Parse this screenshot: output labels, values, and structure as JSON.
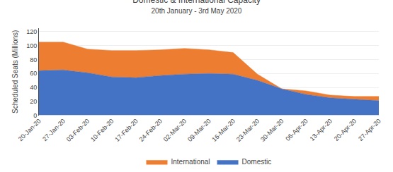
{
  "chart_data": {
    "type": "area",
    "title": "Domestic & International Capacity",
    "subtitle": "20th January - 3rd May 2020",
    "y_label": "Scheduled Seats (Millions)",
    "categories": [
      "20-Jan-20",
      "27-Jan-20",
      "03-Feb-20",
      "10-Feb-20",
      "17-Feb-20",
      "24-Feb-20",
      "02-Mar-20",
      "09-Mar-20",
      "16-Mar-20",
      "23-Mar-20",
      "30-Mar-20",
      "06-Apr-20",
      "13-Apr-20",
      "20-Apr-20",
      "27-Apr-20"
    ],
    "series": [
      {
        "name": "Domestic",
        "color": "#4472C4",
        "values": [
          64,
          65,
          61,
          55,
          54,
          57,
          59,
          60,
          59,
          50,
          38,
          30,
          25,
          23,
          21
        ]
      },
      {
        "name": "International",
        "color": "#ED7D31",
        "values": [
          41,
          40,
          34,
          38,
          39,
          37,
          37,
          34,
          31,
          9,
          0,
          5,
          4,
          4,
          6
        ]
      }
    ],
    "stacked": true,
    "ylim": [
      0,
      125
    ],
    "yticks": [
      0,
      20,
      40,
      60,
      80,
      100,
      120
    ],
    "grid": true,
    "legend": "bottom"
  }
}
